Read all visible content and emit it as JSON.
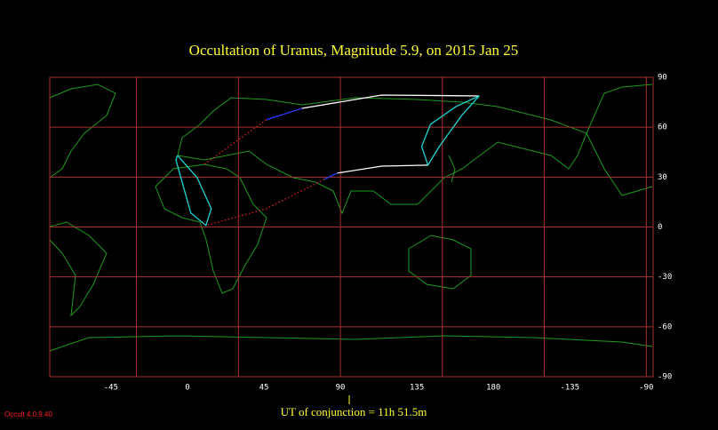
{
  "chart_data": {
    "type": "map",
    "title": "Occultation  of  Uranus,      Magnitude 5.9,   on  2015 Jan 25",
    "footer": "UT of conjunction = 11h 51.5m",
    "version": "Occult 4.0.9.40",
    "xlim": [
      -81,
      274
    ],
    "ylim": [
      -90,
      90
    ],
    "xticks": [
      -45,
      0,
      45,
      90,
      135,
      180,
      -135,
      -90
    ],
    "yticks": [
      90,
      60,
      30,
      0,
      -30,
      -60,
      -90
    ],
    "xgrid": [
      -30,
      30,
      90,
      150,
      -150,
      -90
    ],
    "grid": true,
    "grid_color": "#a83232",
    "series": [
      {
        "color": "#ffffff",
        "x": [
          67.3,
          114.3,
          171.7
        ],
        "values": [
          71.3,
          79.3,
          78.8
        ]
      },
      {
        "color": "#ffffff",
        "x": [
          141.5,
          114.3,
          88.2
        ],
        "values": [
          37.2,
          36.6,
          32.4
        ]
      },
      {
        "color": "#22d3d3",
        "x": [
          171.7,
          161.3,
          148.2,
          141.5,
          137.8,
          143,
          158,
          171.7
        ],
        "values": [
          78.8,
          67,
          48.4,
          37.2,
          48.4,
          61.7,
          72.4,
          78.8
        ]
      },
      {
        "color": "#22d3d3",
        "x": [
          -5.8,
          5.7,
          14,
          10.9,
          2,
          -6.8,
          -5.8
        ],
        "values": [
          43,
          29.7,
          11,
          0.9,
          8.4,
          40.4,
          43
        ]
      },
      {
        "color": "#2a3cff",
        "x": [
          67.3,
          46.4
        ],
        "values": [
          71.3,
          64.4
        ]
      },
      {
        "color": "#2a3cff",
        "x": [
          88.2,
          80.4
        ],
        "values": [
          32.4,
          28.6
        ]
      },
      {
        "color": "#e02020",
        "style": "dotted",
        "x": [
          46.4,
          9.9
        ],
        "values": [
          64.4,
          37.7
        ]
      },
      {
        "color": "#e02020",
        "style": "dotted",
        "x": [
          80.4,
          46.4,
          10.9
        ],
        "values": [
          28.6,
          11,
          0.9
        ]
      }
    ]
  }
}
